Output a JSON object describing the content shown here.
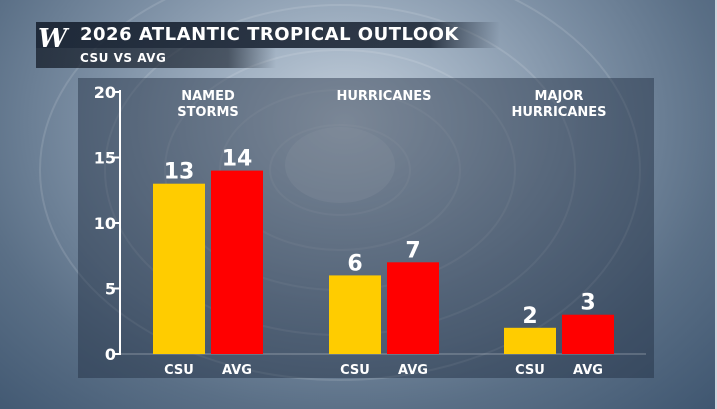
{
  "header": {
    "logo_text": "W",
    "title": "2026 ATLANTIC TROPICAL OUTLOOK",
    "subtitle": "CSU VS AVG"
  },
  "colors": {
    "csu": "#ffcc00",
    "avg": "#ff0000"
  },
  "chart_data": {
    "type": "bar",
    "categories": [
      "NAMED STORMS",
      "HURRICANES",
      "MAJOR HURRICANES"
    ],
    "category_label_lines": [
      [
        "NAMED",
        "STORMS"
      ],
      [
        "HURRICANES"
      ],
      [
        "MAJOR",
        "HURRICANES"
      ]
    ],
    "series": [
      {
        "name": "CSU",
        "color": "#ffcc00",
        "values": [
          13,
          6,
          2
        ]
      },
      {
        "name": "AVG",
        "color": "#ff0000",
        "values": [
          14,
          7,
          3
        ]
      }
    ],
    "ylim": [
      0,
      20
    ],
    "yticks": [
      0,
      5,
      10,
      15,
      20
    ],
    "data_labels": true,
    "grid": false,
    "legend": "none"
  }
}
